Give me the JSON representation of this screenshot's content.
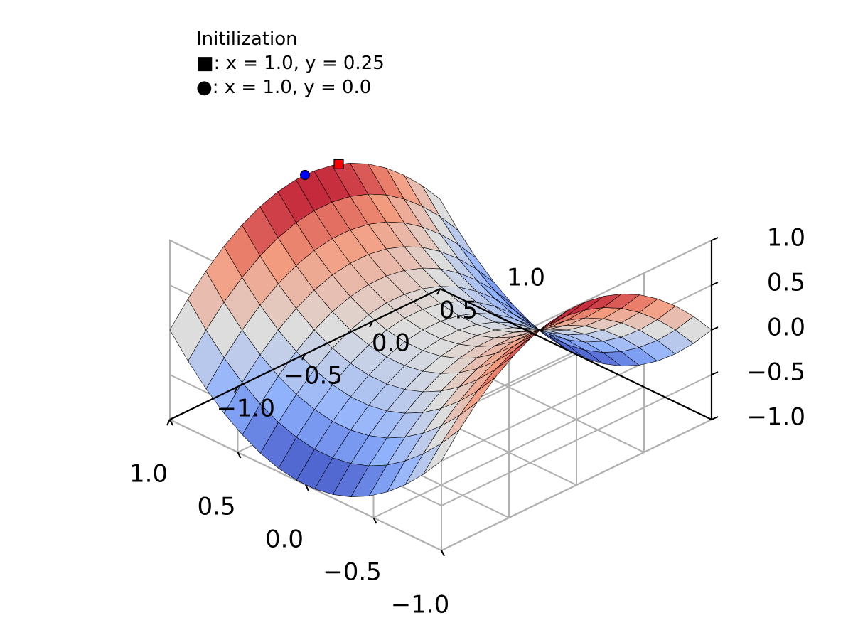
{
  "legend": {
    "title": "Initilization",
    "rows": [
      {
        "symbol": "■",
        "text": ": x = 1.0, y = 0.25"
      },
      {
        "symbol": "●",
        "text": ": x = 1.0, y = 0.0"
      }
    ]
  },
  "chart_data": {
    "type": "surface",
    "function": "z = x^2 - y^2",
    "x_range": [
      -1.0,
      1.0
    ],
    "y_range": [
      -1.0,
      1.0
    ],
    "z_range": [
      -1.0,
      1.0
    ],
    "grid_resolution": 15,
    "colormap": "coolwarm",
    "grid": true,
    "axes": {
      "x": {
        "ticks": [
          1.0,
          0.5,
          0.0,
          -0.5,
          -1.0
        ],
        "tick_labels": [
          "1.0",
          "0.5",
          "0.0",
          "−0.5",
          "−1.0"
        ]
      },
      "y": {
        "ticks": [
          -1.0,
          -0.5,
          0.0,
          0.5,
          1.0
        ],
        "tick_labels": [
          "−1.0",
          "−0.5",
          "0.0",
          "0.5",
          "1.0"
        ]
      },
      "z": {
        "ticks": [
          1.0,
          0.5,
          0.0,
          -0.5,
          -1.0
        ],
        "tick_labels": [
          "1.0",
          "0.5",
          "0.0",
          "−0.5",
          "−1.0"
        ]
      }
    },
    "points": [
      {
        "marker": "square",
        "x": 1.0,
        "y": 0.25,
        "z": 0.9375,
        "color": "#ff0000"
      },
      {
        "marker": "circle",
        "x": 1.0,
        "y": 0.0,
        "z": 1.0,
        "color": "#0000ff"
      }
    ]
  }
}
